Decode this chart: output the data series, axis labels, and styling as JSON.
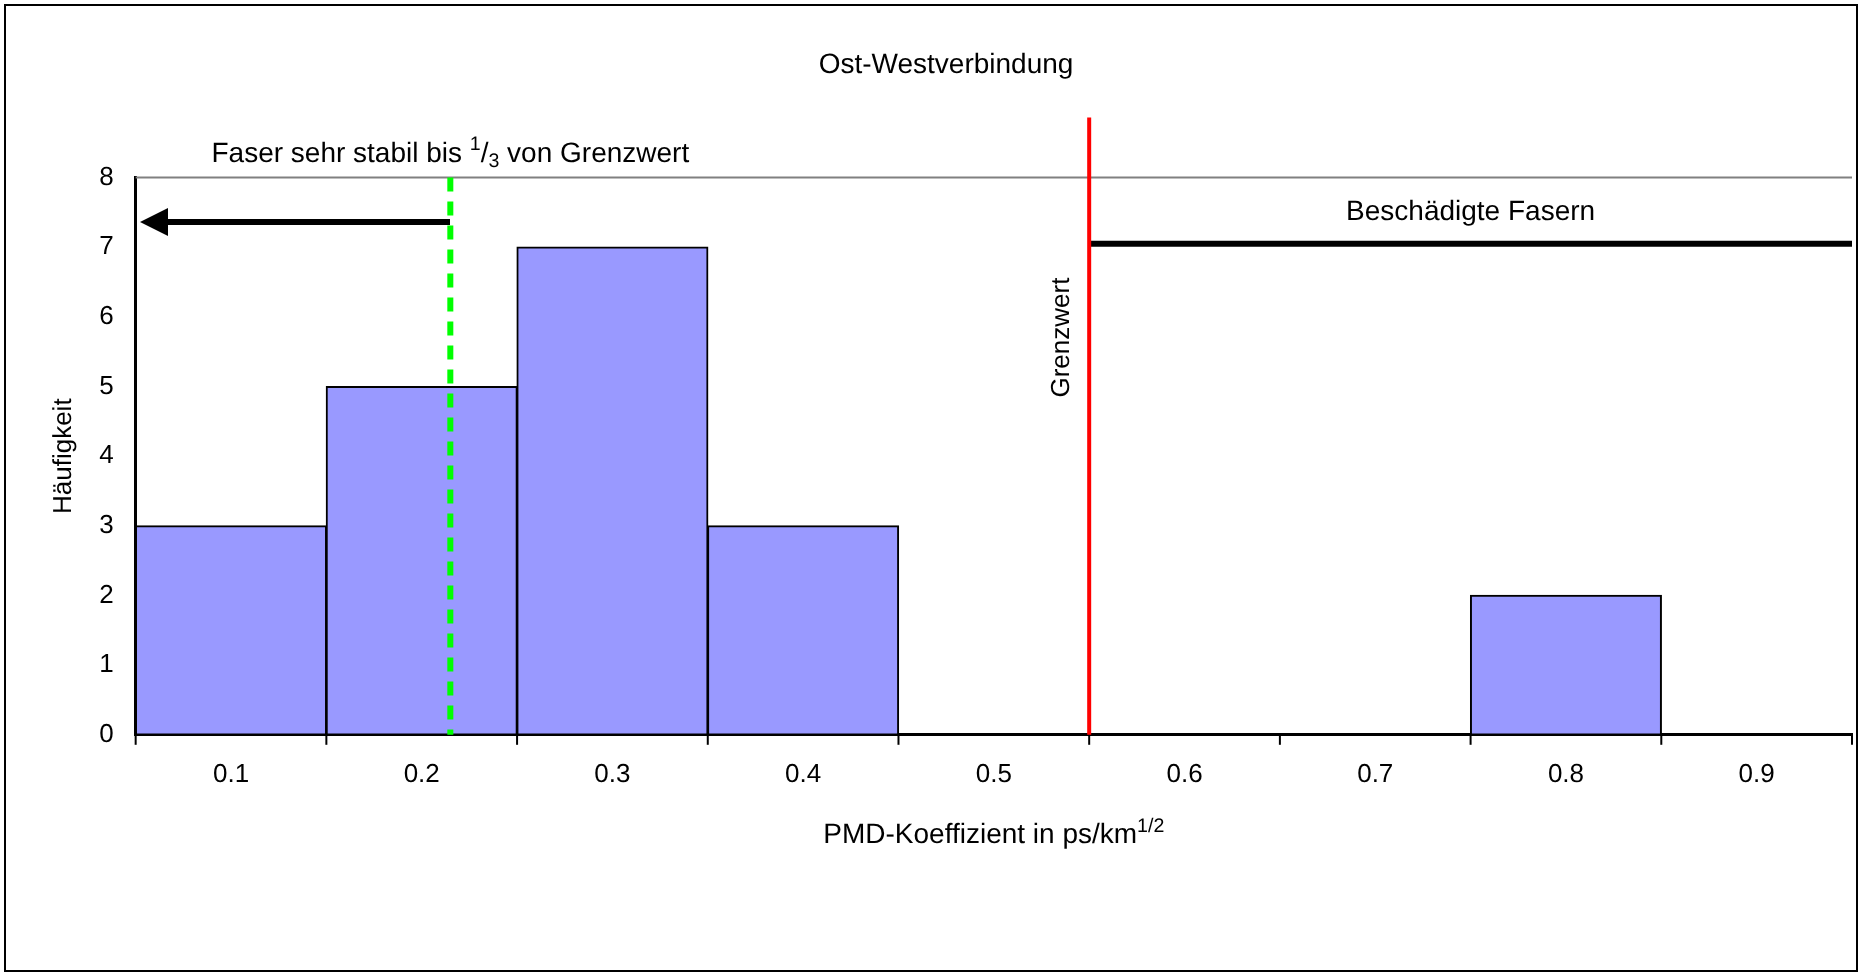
{
  "chart_data": {
    "type": "histogram",
    "title": "Ost-Westverbindung",
    "xlabel": "PMD-Koeffizient in ps/km$^{1/2}$",
    "ylabel": "Häufigkeit",
    "bins": [
      0.05,
      0.15,
      0.25,
      0.35,
      0.45,
      0.55,
      0.65,
      0.75,
      0.85,
      0.95
    ],
    "values": [
      3,
      5,
      7,
      3,
      0,
      0,
      0,
      2,
      0
    ],
    "color": "#9999ff",
    "xlim": [
      0.05,
      0.95
    ],
    "xticks": [
      0.1,
      0.2,
      0.3,
      0.4,
      0.5,
      0.6,
      0.7,
      0.8,
      0.9
    ],
    "ylim": [
      0,
      8
    ],
    "yticks": [
      0,
      1,
      2,
      3,
      4,
      5,
      6,
      7,
      8
    ],
    "ref_lines": [
      {
        "axis": "x",
        "value": 0.55,
        "label": "Grenzwert",
        "color": "#ff0000",
        "line_style": "solid"
      },
      {
        "axis": "x",
        "value": 0.215,
        "label": "Faser sehr stabil bis $^{1}$/$_{3}$ von Grenzwert",
        "color": "#00ff00",
        "line_style": "dashed"
      }
    ],
    "series": [
      {
        "type": "line",
        "name": "Beschädigte Fasern",
        "x": [
          0.55,
          0.95
        ],
        "values": [
          7.05,
          7.05
        ],
        "color": "#000000",
        "marker": "none",
        "line_style": "solid"
      }
    ],
    "grid": false,
    "legend": false
  }
}
